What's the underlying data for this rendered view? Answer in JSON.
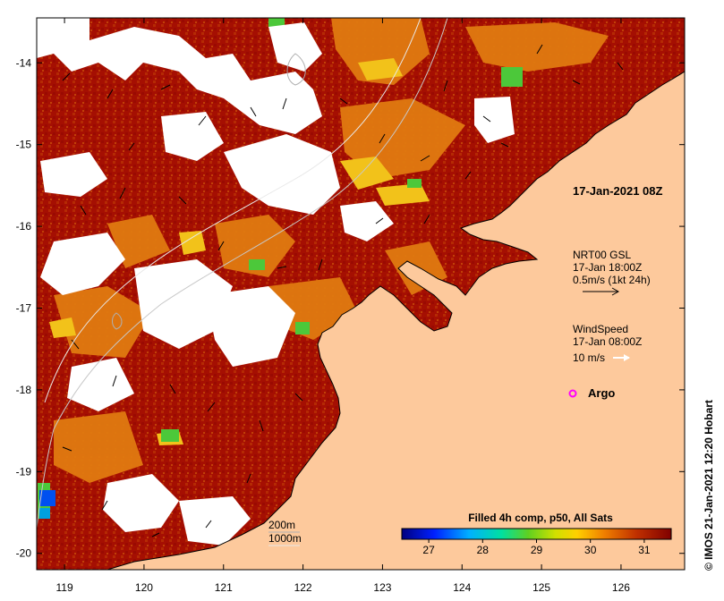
{
  "map": {
    "timestamp_label": "17-Jan-2021 08Z",
    "current_legend": {
      "title": "NRT00 GSL",
      "time": "17-Jan 18:00Z",
      "scale": "0.5m/s (1kt 24h)"
    },
    "wind_legend": {
      "title": "WindSpeed",
      "time": "17-Jan 08:00Z",
      "scale": "10 m/s"
    },
    "argo_label": "Argo",
    "contours": {
      "c200": "200m",
      "c1000": "1000m"
    },
    "colorbar": {
      "title": "Filled 4h comp, p50, All Sats",
      "ticks": [
        "27",
        "28",
        "29",
        "30",
        "31"
      ],
      "min": 26.5,
      "max": 31.5
    },
    "credit": "© IMOS 21-Jan-2021 12:20 Hobart",
    "x_ticks": [
      "119",
      "120",
      "121",
      "122",
      "123",
      "124",
      "125",
      "126"
    ],
    "y_ticks": [
      "-14",
      "-15",
      "-16",
      "-17",
      "-18",
      "-19",
      "-20"
    ],
    "xlim": [
      118.65,
      126.8
    ],
    "ylim": [
      -20.2,
      -13.45
    ],
    "colors": {
      "land": "#fdc99c",
      "sst_warm": "#a50f02",
      "sst_orange": "#e07a10",
      "sst_yellow": "#f2c21a",
      "argo": "#ff00ff"
    }
  }
}
